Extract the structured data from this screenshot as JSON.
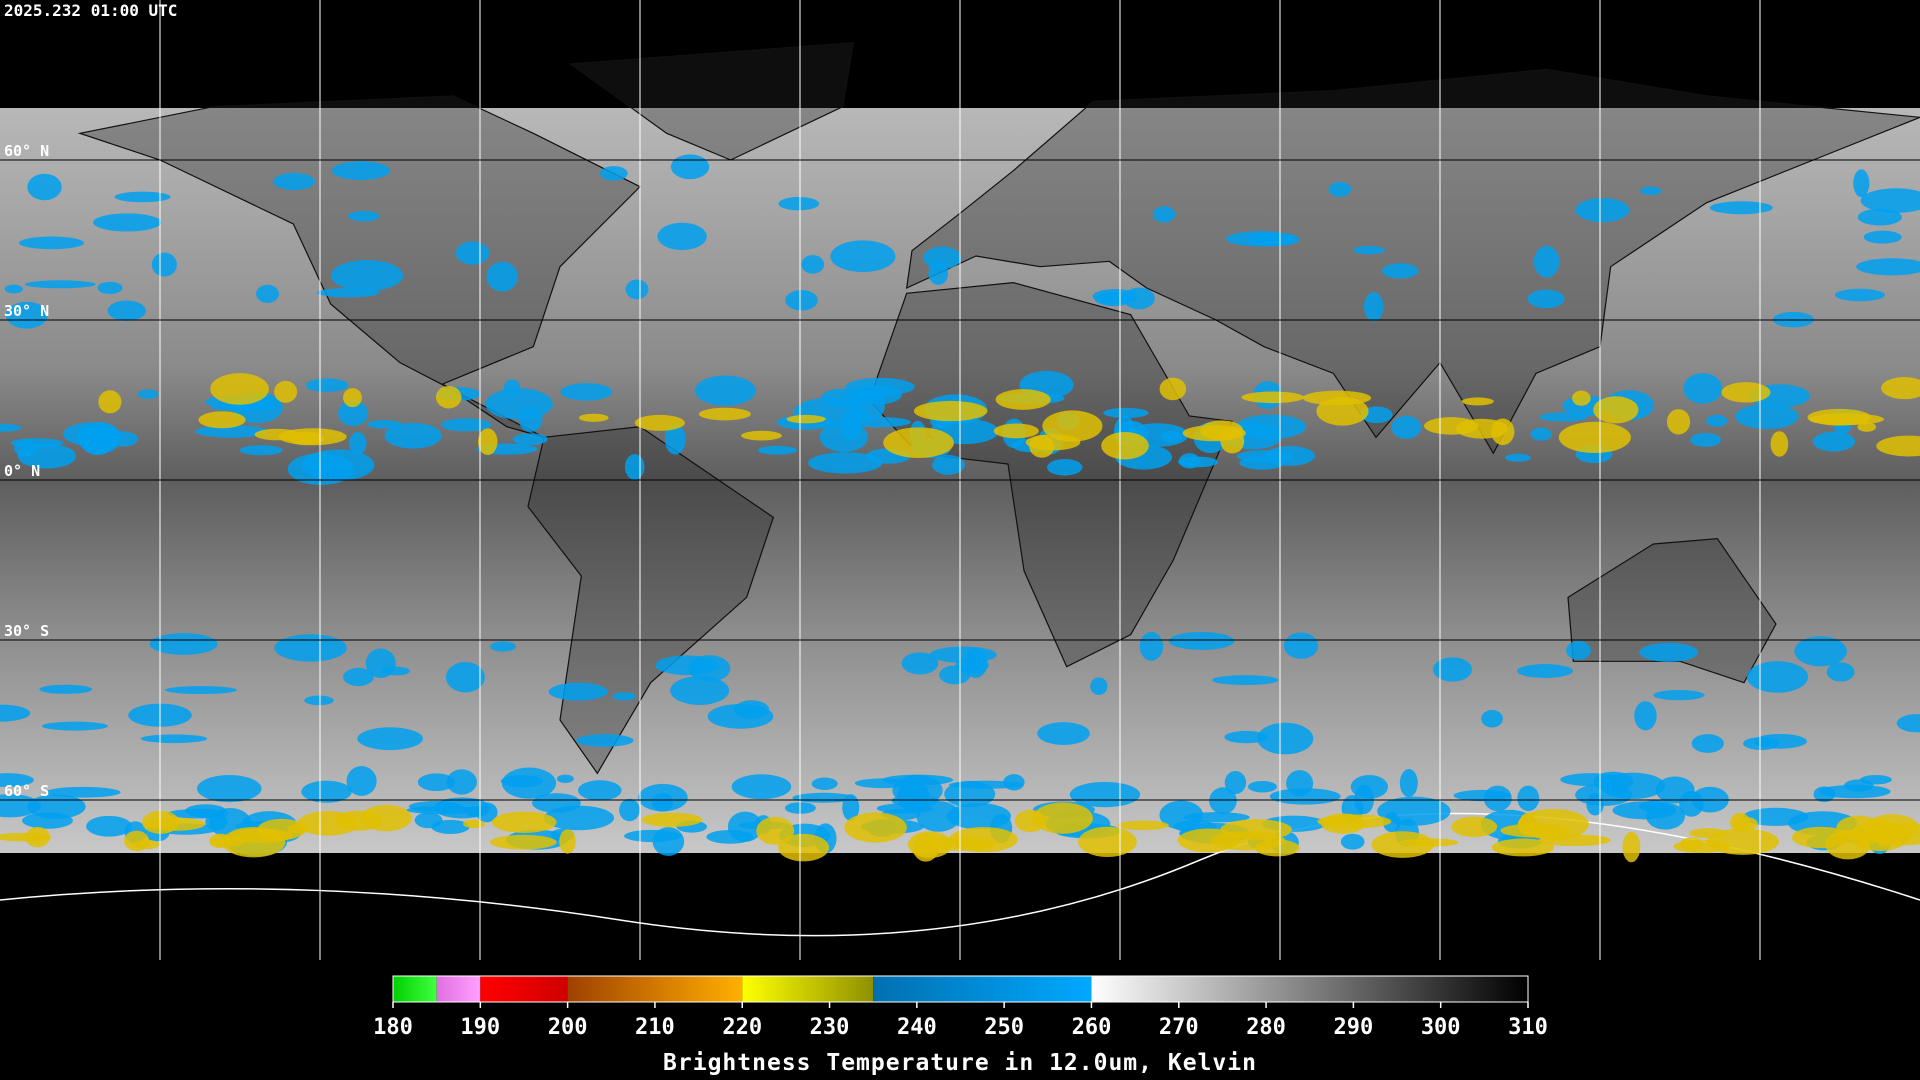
{
  "timestamp": "2025.232 01:00 UTC",
  "map": {
    "latitude_labels": [
      {
        "value": 60,
        "label": "60° N"
      },
      {
        "value": 30,
        "label": "30° N"
      },
      {
        "value": 0,
        "label": "0° N"
      },
      {
        "value": -30,
        "label": "30° S"
      },
      {
        "value": -60,
        "label": "60° S"
      }
    ],
    "longitude_lines": [
      -150,
      -120,
      -90,
      -60,
      -30,
      0,
      30,
      60,
      90,
      120,
      150
    ]
  },
  "colorbar": {
    "label": "Brightness Temperature in 12.0um, Kelvin",
    "range": [
      180,
      310
    ],
    "ticks": [
      180,
      190,
      200,
      210,
      220,
      230,
      240,
      250,
      260,
      270,
      280,
      290,
      300,
      310
    ],
    "segments": [
      {
        "from": 180,
        "to": 185,
        "colors": [
          "#00d000",
          "#40ff40"
        ]
      },
      {
        "from": 185,
        "to": 190,
        "colors": [
          "#e070e0",
          "#ffa0ff"
        ]
      },
      {
        "from": 190,
        "to": 200,
        "colors": [
          "#ff0000",
          "#d00000"
        ]
      },
      {
        "from": 200,
        "to": 220,
        "colors": [
          "#a04000",
          "#ffb000"
        ]
      },
      {
        "from": 220,
        "to": 235,
        "colors": [
          "#ffff00",
          "#909000"
        ]
      },
      {
        "from": 235,
        "to": 260,
        "colors": [
          "#0070b0",
          "#00a8ff"
        ]
      },
      {
        "from": 260,
        "to": 310,
        "colors": [
          "#ffffff",
          "#000000"
        ]
      }
    ]
  }
}
